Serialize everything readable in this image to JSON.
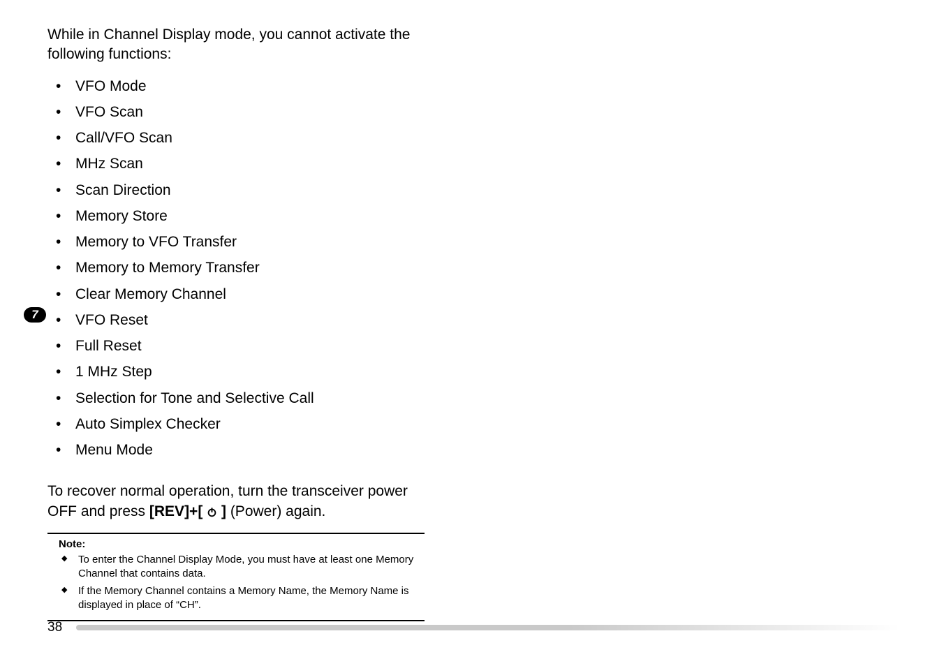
{
  "sideTab": {
    "label": "7"
  },
  "intro": "While in Channel Display mode, you cannot activate the following functions:",
  "functions": [
    "VFO Mode",
    "VFO Scan",
    "Call/VFO Scan",
    "MHz Scan",
    "Scan Direction",
    "Memory Store",
    "Memory to VFO Transfer",
    "Memory to Memory Transfer",
    "Clear Memory Channel",
    "VFO Reset",
    "Full Reset",
    "1 MHz Step",
    "Selection for Tone and Selective Call",
    "Auto Simplex Checker",
    "Menu Mode"
  ],
  "recover": {
    "prefix": "To recover normal operation, turn the transceiver power OFF and press ",
    "key": "[REV]+[ ",
    "keyClose": " ]",
    "suffix": " (Power) again."
  },
  "note": {
    "title": "Note:",
    "items": [
      "To enter the Channel Display Mode, you must have at least one Memory Channel that contains data.",
      "If the Memory Channel contains a Memory Name, the Memory Name is displayed in place of “CH”."
    ]
  },
  "pageNumber": "38",
  "styling": {
    "bodyFontSize": 21,
    "noteFontSize": 15,
    "textColor": "#000000",
    "background": "#ffffff",
    "sideTabBg": "#000000",
    "sideTabColor": "#ffffff",
    "footerLineColor": "#c9c9c9"
  }
}
